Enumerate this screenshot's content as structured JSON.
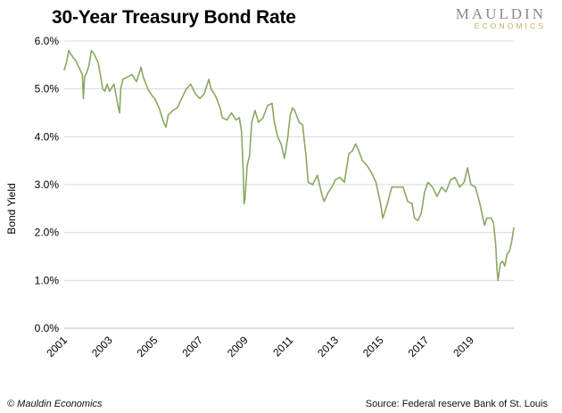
{
  "branding": {
    "logo_top": "MAULDIN",
    "logo_bottom": "ECONOMICS",
    "logo_top_color": "#8a8a8a",
    "logo_bottom_color": "#c5a95a"
  },
  "footer": {
    "copyright": "© Mauldin Economics",
    "source": "Source: Federal reserve Bank of St. Louis"
  },
  "chart_data": {
    "type": "line",
    "title": "30-Year Treasury Bond Rate",
    "xlabel": "",
    "ylabel": "Bond Yield",
    "xlim": [
      2001.0,
      2020.9
    ],
    "ylim": [
      0,
      6
    ],
    "y_ticks": [
      "0.0%",
      "1.0%",
      "2.0%",
      "3.0%",
      "4.0%",
      "5.0%",
      "6.0%"
    ],
    "x_ticks": [
      "2001",
      "2003",
      "2005",
      "2007",
      "2009",
      "2011",
      "2013",
      "2015",
      "2017",
      "2019"
    ],
    "grid": "horizontal",
    "legend": "none",
    "line_color": "#8aa863",
    "series": [
      {
        "x": [
          2001.0,
          2001.1,
          2001.2,
          2001.3,
          2001.4,
          2001.5,
          2001.6,
          2001.7,
          2001.8,
          2001.85,
          2001.9,
          2002.0,
          2002.1,
          2002.2,
          2002.3,
          2002.4,
          2002.5,
          2002.6,
          2002.7,
          2002.8,
          2002.9,
          2003.0,
          2003.2,
          2003.4,
          2003.45,
          2003.5,
          2003.6,
          2003.8,
          2004.0,
          2004.2,
          2004.4,
          2004.5,
          2004.7,
          2004.9,
          2005.0,
          2005.2,
          2005.4,
          2005.5,
          2005.6,
          2005.8,
          2006.0,
          2006.2,
          2006.4,
          2006.6,
          2006.8,
          2007.0,
          2007.2,
          2007.4,
          2007.5,
          2007.7,
          2007.9,
          2008.0,
          2008.2,
          2008.4,
          2008.6,
          2008.75,
          2008.85,
          2008.92,
          2008.96,
          2009.0,
          2009.1,
          2009.2,
          2009.3,
          2009.45,
          2009.6,
          2009.8,
          2010.0,
          2010.2,
          2010.3,
          2010.45,
          2010.6,
          2010.75,
          2010.9,
          2011.0,
          2011.1,
          2011.2,
          2011.4,
          2011.55,
          2011.7,
          2011.8,
          2012.0,
          2012.2,
          2012.4,
          2012.5,
          2012.7,
          2012.85,
          2013.0,
          2013.2,
          2013.4,
          2013.6,
          2013.75,
          2013.9,
          2014.0,
          2014.2,
          2014.4,
          2014.6,
          2014.8,
          2015.0,
          2015.1,
          2015.3,
          2015.5,
          2015.7,
          2015.9,
          2016.0,
          2016.2,
          2016.4,
          2016.5,
          2016.65,
          2016.8,
          2016.95,
          2017.1,
          2017.3,
          2017.5,
          2017.7,
          2017.9,
          2018.1,
          2018.3,
          2018.5,
          2018.7,
          2018.85,
          2019.0,
          2019.2,
          2019.4,
          2019.6,
          2019.7,
          2019.9,
          2020.0,
          2020.1,
          2020.15,
          2020.2,
          2020.3,
          2020.4,
          2020.5,
          2020.6,
          2020.7,
          2020.8,
          2020.9
        ],
        "values": [
          5.4,
          5.55,
          5.8,
          5.72,
          5.65,
          5.6,
          5.5,
          5.4,
          5.3,
          4.8,
          5.25,
          5.35,
          5.5,
          5.8,
          5.75,
          5.65,
          5.55,
          5.3,
          5.0,
          4.95,
          5.1,
          4.95,
          5.1,
          4.6,
          4.5,
          5.0,
          5.2,
          5.25,
          5.3,
          5.15,
          5.45,
          5.25,
          5.0,
          4.85,
          4.8,
          4.6,
          4.3,
          4.2,
          4.45,
          4.55,
          4.6,
          4.8,
          5.0,
          5.1,
          4.9,
          4.8,
          4.9,
          5.2,
          5.0,
          4.85,
          4.6,
          4.4,
          4.35,
          4.5,
          4.35,
          4.4,
          4.1,
          3.3,
          2.6,
          2.7,
          3.4,
          3.6,
          4.3,
          4.55,
          4.3,
          4.4,
          4.65,
          4.7,
          4.3,
          4.0,
          3.85,
          3.55,
          4.0,
          4.45,
          4.6,
          4.55,
          4.3,
          4.25,
          3.6,
          3.05,
          3.0,
          3.2,
          2.8,
          2.65,
          2.85,
          2.95,
          3.1,
          3.15,
          3.05,
          3.65,
          3.7,
          3.85,
          3.75,
          3.5,
          3.4,
          3.25,
          3.05,
          2.6,
          2.3,
          2.6,
          2.95,
          2.95,
          2.95,
          2.95,
          2.65,
          2.6,
          2.3,
          2.25,
          2.4,
          2.85,
          3.05,
          2.95,
          2.75,
          2.95,
          2.85,
          3.1,
          3.15,
          2.95,
          3.05,
          3.35,
          3.0,
          2.95,
          2.6,
          2.15,
          2.3,
          2.3,
          2.2,
          1.75,
          1.25,
          1.0,
          1.35,
          1.4,
          1.3,
          1.55,
          1.6,
          1.8,
          2.1
        ]
      }
    ]
  }
}
